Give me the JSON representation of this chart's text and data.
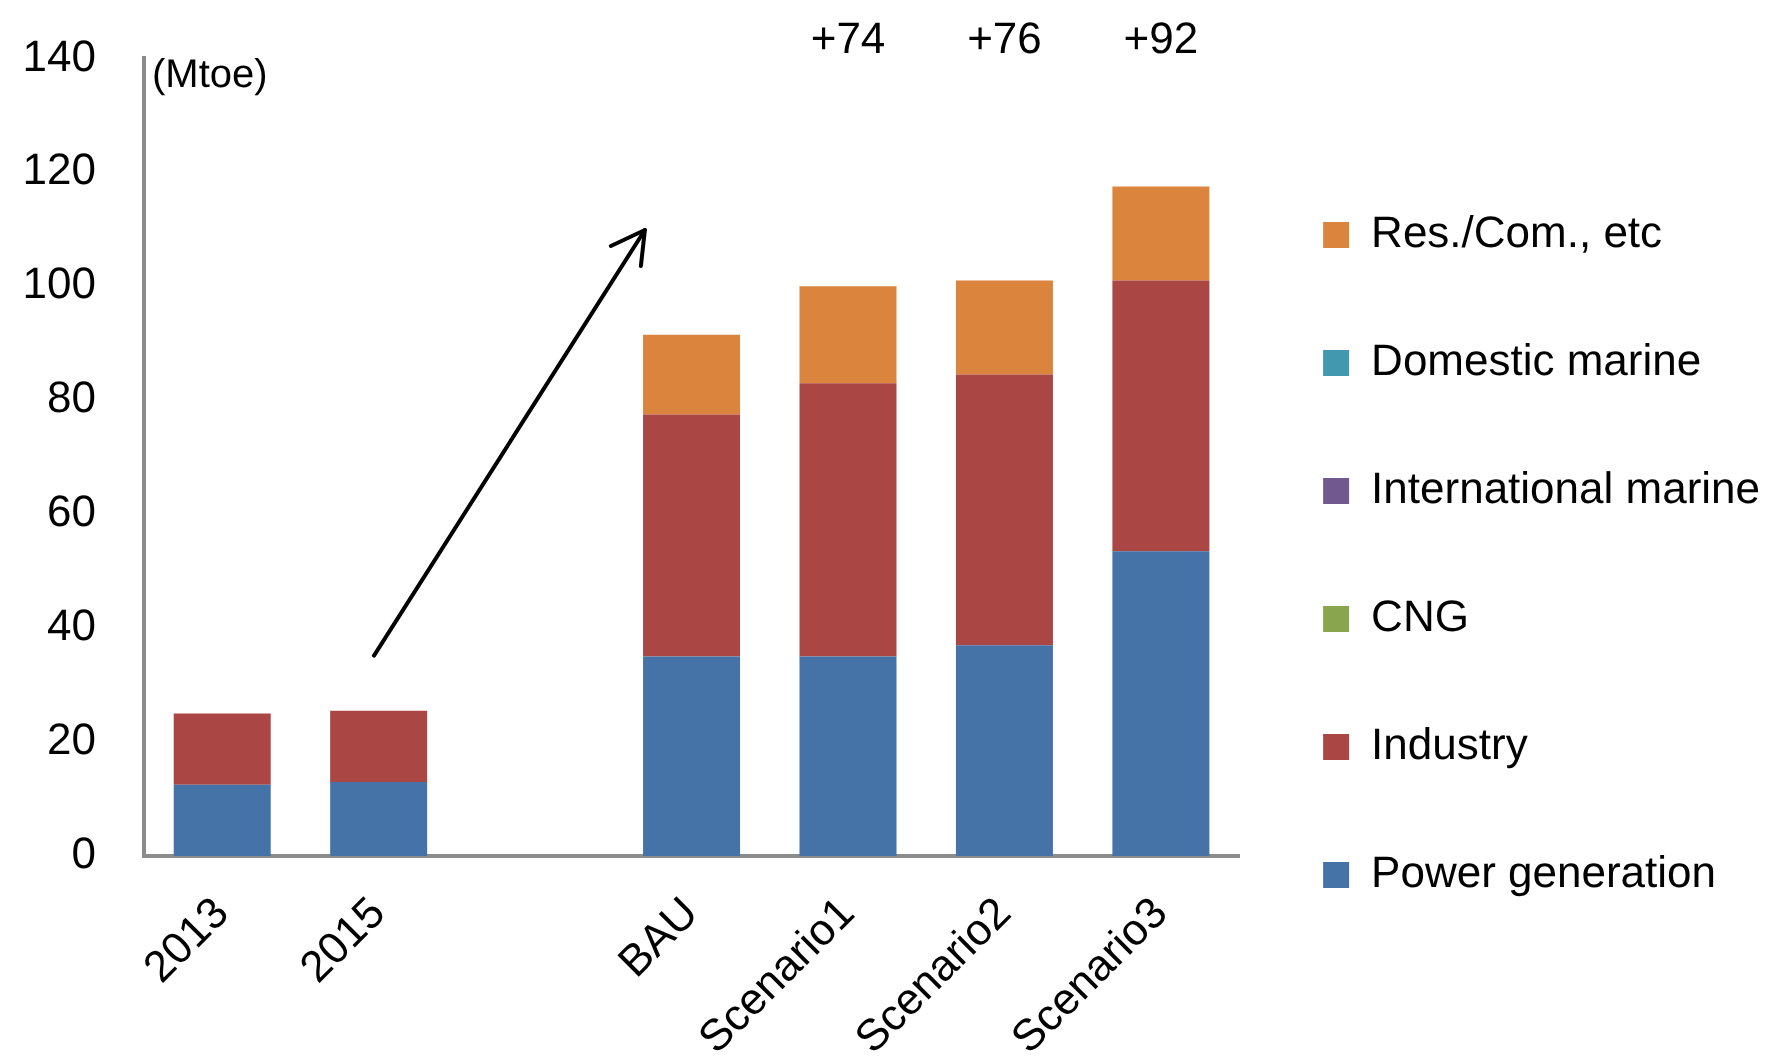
{
  "chart_data": {
    "type": "bar",
    "stacked": true,
    "ylabel": "(Mtoe)",
    "categories": [
      "2013",
      "2015",
      null,
      "BAU",
      "Scenario1",
      "Scenario2",
      "Scenario3"
    ],
    "series": [
      {
        "name": "Power generation",
        "color": "#4572a7",
        "values": [
          12.5,
          13,
          null,
          35,
          35,
          37,
          53.5
        ]
      },
      {
        "name": "Industry",
        "color": "#aa4643",
        "values": [
          12.5,
          12.5,
          null,
          42.5,
          48,
          47.5,
          47.5
        ]
      },
      {
        "name": "CNG",
        "color": "#89a54e",
        "values": [
          0,
          0,
          null,
          0,
          0,
          0,
          0
        ]
      },
      {
        "name": "International marine",
        "color": "#71588f",
        "values": [
          0,
          0,
          null,
          0,
          0,
          0,
          0
        ]
      },
      {
        "name": "Domestic marine",
        "color": "#4198af",
        "values": [
          0,
          0,
          null,
          0,
          0,
          0,
          0
        ]
      },
      {
        "name": "Res./Com., etc",
        "color": "#db843d",
        "values": [
          0,
          0,
          null,
          14,
          17,
          16.5,
          16.5
        ]
      }
    ],
    "ylim": [
      0,
      140
    ],
    "yticks": [
      0,
      20,
      40,
      60,
      80,
      100,
      120,
      140
    ],
    "grid": false,
    "legend": "right",
    "annotations": [
      "+74",
      "+76",
      "+92"
    ]
  }
}
